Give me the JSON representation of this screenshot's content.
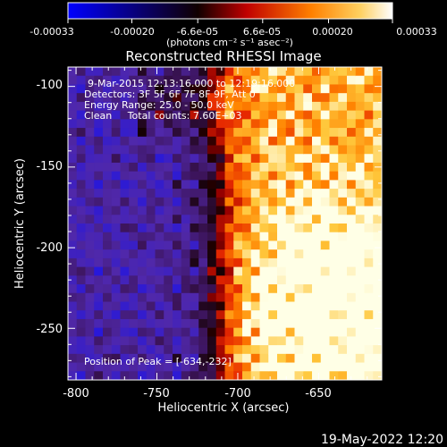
{
  "colorbar": {
    "tick_labels": [
      "-0.00033",
      "-0.00020",
      "-6.6e-05",
      "6.6e-05",
      "0.00020",
      "0.00033"
    ],
    "tick_values": [
      -0.00033,
      -0.0002,
      -6.6e-05,
      6.6e-05,
      0.0002,
      0.00033
    ],
    "range": [
      -0.00033,
      0.00033
    ],
    "unit_label": "(photons cm⁻² s⁻¹ asec⁻²)",
    "colormap_stops": [
      "#0000ff",
      "#000000",
      "#b00000",
      "#ff6000",
      "#ffc040",
      "#ffffff"
    ]
  },
  "chart_data": {
    "type": "heatmap",
    "title": "Reconstructed RHESSI Image",
    "xlabel": "Heliocentric X (arcsec)",
    "ylabel": "Heliocentric Y (arcsec)",
    "xlim": [
      -805,
      -611
    ],
    "ylim": [
      -282,
      -88
    ],
    "xticks": [
      -800,
      -750,
      -700,
      -650
    ],
    "yticks": [
      -100,
      -150,
      -200,
      -250
    ],
    "xtick_labels": [
      "-800",
      "-750",
      "-700",
      "-650"
    ],
    "ytick_labels": [
      "-100",
      "-150",
      "-200",
      "-250"
    ],
    "annotations": [
      "9-Mar-2015 12:13:16.000 to 12:19:16.000",
      "Detectors: 3F 5F 6F 7F 8F 9F, Att 0",
      "Energy Range: 25.0 - 50.0 keV",
      "Clean     Total counts: 7.60E+03"
    ],
    "peak_label": "Position of Peak = [-634,-232]",
    "peak": [
      -634,
      -232
    ]
  },
  "footer": {
    "timestamp": "19-May-2022 12:20"
  }
}
